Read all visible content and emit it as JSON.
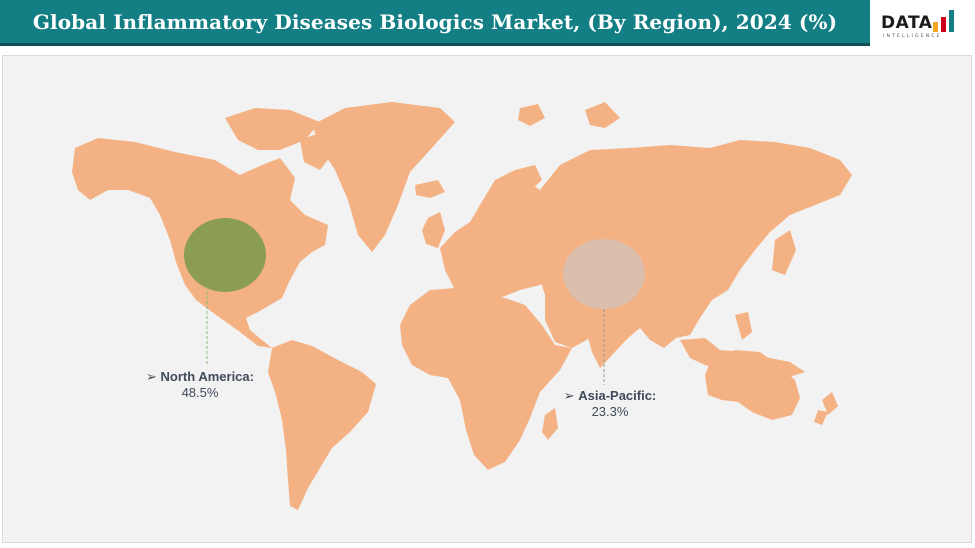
{
  "header": {
    "title": "Global Inflammatory Diseases Biologics Market, (By Region), 2024 (%)"
  },
  "logo": {
    "word": "DATA",
    "subtitle": "INTELLIGENCE",
    "bar_colors": [
      "#f5a623",
      "#d0021b",
      "#137f85"
    ]
  },
  "colors": {
    "land": "#f4b183",
    "background": "#f2f2f2",
    "header": "#137f85",
    "north_america_bubble": "#7e9b4c",
    "asia_pacific_bubble": "#d9c0b0"
  },
  "regions": [
    {
      "name": "North America:",
      "value": "48.5%",
      "marker": "➢"
    },
    {
      "name": "Asia-Pacific:",
      "value": "23.3%",
      "marker": "➢"
    }
  ]
}
